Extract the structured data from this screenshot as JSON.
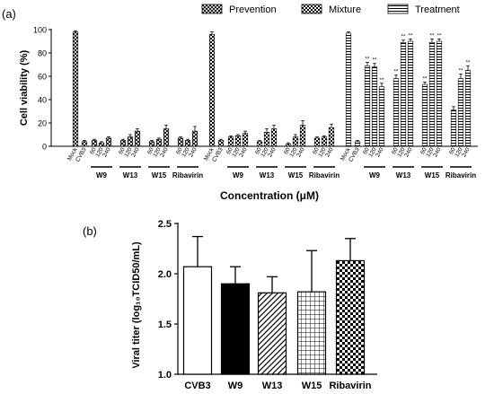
{
  "chart_data": [
    {
      "panel_label": "(a)",
      "type": "bar",
      "ylabel": "Cell viability (%)",
      "xlabel": "Concentration (μM)",
      "ylim": [
        0,
        100
      ],
      "yticks": [
        0,
        20,
        40,
        60,
        80,
        100
      ],
      "legend": {
        "placement": "top",
        "entries": [
          {
            "name": "Prevention",
            "pattern": "cross-hatch"
          },
          {
            "name": "Mixture",
            "pattern": "checker"
          },
          {
            "name": "Treatment",
            "pattern": "horizontal-stripes"
          }
        ]
      },
      "groups": [
        {
          "name": "Prevention",
          "pattern": "cross-hatch",
          "bars": [
            {
              "label": "Mock",
              "value": 98,
              "err": 1
            },
            {
              "label": "CVB3",
              "value": 4,
              "err": 1
            },
            {
              "label": "60",
              "drug": "W9",
              "value": 5,
              "err": 1
            },
            {
              "label": "120",
              "drug": "W9",
              "value": 3,
              "err": 1
            },
            {
              "label": "240",
              "drug": "W9",
              "value": 7,
              "err": 1
            },
            {
              "label": "60",
              "drug": "W13",
              "value": 5,
              "err": 1
            },
            {
              "label": "120",
              "drug": "W13",
              "value": 8,
              "err": 2
            },
            {
              "label": "240",
              "drug": "W13",
              "value": 13,
              "err": 2
            },
            {
              "label": "60",
              "drug": "W15",
              "value": 4,
              "err": 1
            },
            {
              "label": "120",
              "drug": "W15",
              "value": 6,
              "err": 1
            },
            {
              "label": "240",
              "drug": "W15",
              "value": 15,
              "err": 3
            },
            {
              "label": "60",
              "drug": "Ribavirin",
              "value": 7,
              "err": 1
            },
            {
              "label": "120",
              "drug": "Ribavirin",
              "value": 5,
              "err": 1
            },
            {
              "label": "240",
              "drug": "Ribavirin",
              "value": 13,
              "err": 4
            }
          ]
        },
        {
          "name": "Mixture",
          "pattern": "checker",
          "bars": [
            {
              "label": "Mock",
              "value": 96,
              "err": 2
            },
            {
              "label": "CVB3",
              "value": 5,
              "err": 1
            },
            {
              "label": "60",
              "drug": "W9",
              "value": 8,
              "err": 1
            },
            {
              "label": "120",
              "drug": "W9",
              "value": 9,
              "err": 1
            },
            {
              "label": "240",
              "drug": "W9",
              "value": 11,
              "err": 2
            },
            {
              "label": "60",
              "drug": "W13",
              "value": 4,
              "err": 1
            },
            {
              "label": "120",
              "drug": "W13",
              "value": 12,
              "err": 3
            },
            {
              "label": "240",
              "drug": "W13",
              "value": 15,
              "err": 3
            },
            {
              "label": "60",
              "drug": "W15",
              "value": 2,
              "err": 1
            },
            {
              "label": "120",
              "drug": "W15",
              "value": 8,
              "err": 2
            },
            {
              "label": "240",
              "drug": "W15",
              "value": 18,
              "err": 4
            },
            {
              "label": "60",
              "drug": "Ribavirin",
              "value": 7,
              "err": 1
            },
            {
              "label": "120",
              "drug": "Ribavirin",
              "value": 8,
              "err": 1
            },
            {
              "label": "240",
              "drug": "Ribavirin",
              "value": 16,
              "err": 3
            }
          ]
        },
        {
          "name": "Treatment",
          "pattern": "horizontal-stripes",
          "bars": [
            {
              "label": "Mock",
              "value": 97,
              "err": 1
            },
            {
              "label": "CVB3",
              "value": 4,
              "err": 1
            },
            {
              "label": "60",
              "drug": "W9",
              "value": 69,
              "err": 3,
              "sig": "**"
            },
            {
              "label": "120",
              "drug": "W9",
              "value": 68,
              "err": 3,
              "sig": "**"
            },
            {
              "label": "240",
              "drug": "W9",
              "value": 51,
              "err": 3,
              "sig": "**"
            },
            {
              "label": "60",
              "drug": "W13",
              "value": 58,
              "err": 3,
              "sig": "**"
            },
            {
              "label": "120",
              "drug": "W13",
              "value": 89,
              "err": 2,
              "sig": "**"
            },
            {
              "label": "240",
              "drug": "W13",
              "value": 90,
              "err": 2,
              "sig": "**"
            },
            {
              "label": "60",
              "drug": "W15",
              "value": 53,
              "err": 2,
              "sig": "**"
            },
            {
              "label": "120",
              "drug": "W15",
              "value": 89,
              "err": 3,
              "sig": "**"
            },
            {
              "label": "240",
              "drug": "W15",
              "value": 90,
              "err": 2,
              "sig": "**"
            },
            {
              "label": "60",
              "drug": "Ribavirin",
              "value": 31,
              "err": 3
            },
            {
              "label": "120",
              "drug": "Ribavirin",
              "value": 58,
              "err": 4,
              "sig": "**"
            },
            {
              "label": "240",
              "drug": "Ribavirin",
              "value": 65,
              "err": 4,
              "sig": "**"
            }
          ]
        }
      ]
    },
    {
      "panel_label": "(b)",
      "type": "bar",
      "ylabel": "Viral titer (log₁₀TCID50/mL)",
      "ylim": [
        1.0,
        2.5
      ],
      "yticks": [
        "1.0",
        "1.5",
        "2.0",
        "2.5"
      ],
      "categories": [
        "CVB3",
        "W9",
        "W13",
        "W15",
        "Ribavirin"
      ],
      "bars": [
        {
          "label": "CVB3",
          "value": 2.07,
          "err": 0.3,
          "pattern": "white"
        },
        {
          "label": "W9",
          "value": 1.9,
          "err": 0.17,
          "pattern": "black"
        },
        {
          "label": "W13",
          "value": 1.81,
          "err": 0.16,
          "pattern": "diagonal"
        },
        {
          "label": "W15",
          "value": 1.82,
          "err": 0.41,
          "pattern": "grid"
        },
        {
          "label": "Ribavirin",
          "value": 2.13,
          "err": 0.22,
          "pattern": "checker"
        }
      ]
    }
  ],
  "colors": {
    "ink": "#000000",
    "background": "#ffffff"
  }
}
